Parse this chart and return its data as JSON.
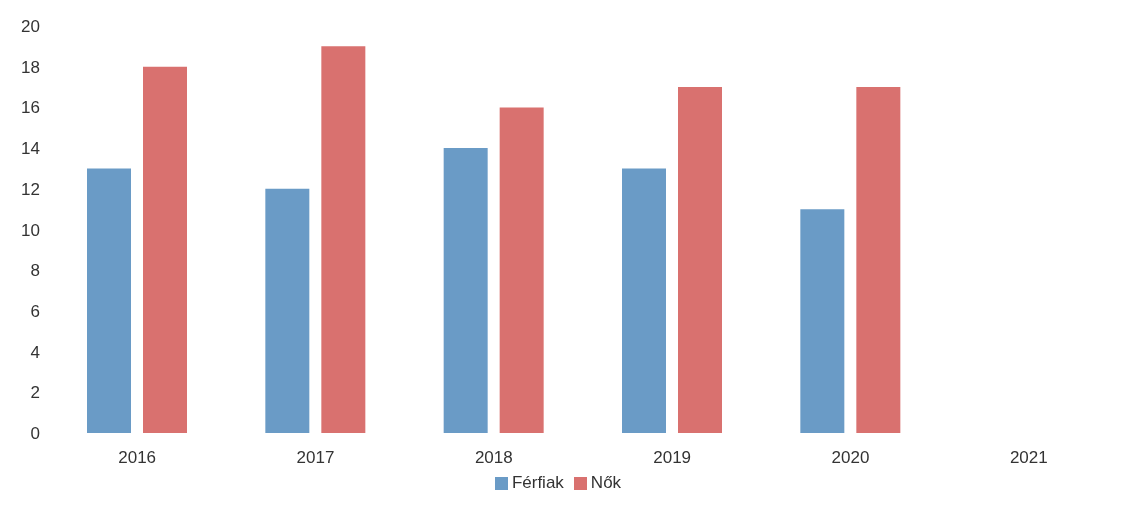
{
  "chart_data": {
    "type": "bar",
    "categories": [
      "2016",
      "2017",
      "2018",
      "2019",
      "2020",
      "2021"
    ],
    "series": [
      {
        "name": "Férfiak",
        "color": "#6a9bc6",
        "values": [
          13,
          12,
          14,
          13,
          11,
          null
        ]
      },
      {
        "name": "Nők",
        "color": "#d9716f",
        "values": [
          18,
          19,
          16,
          17,
          17,
          null
        ]
      }
    ],
    "ylim": [
      0,
      20
    ],
    "yticks": [
      0,
      2,
      4,
      6,
      8,
      10,
      12,
      14,
      16,
      18,
      20
    ],
    "grid": false,
    "legend": "bottom"
  }
}
